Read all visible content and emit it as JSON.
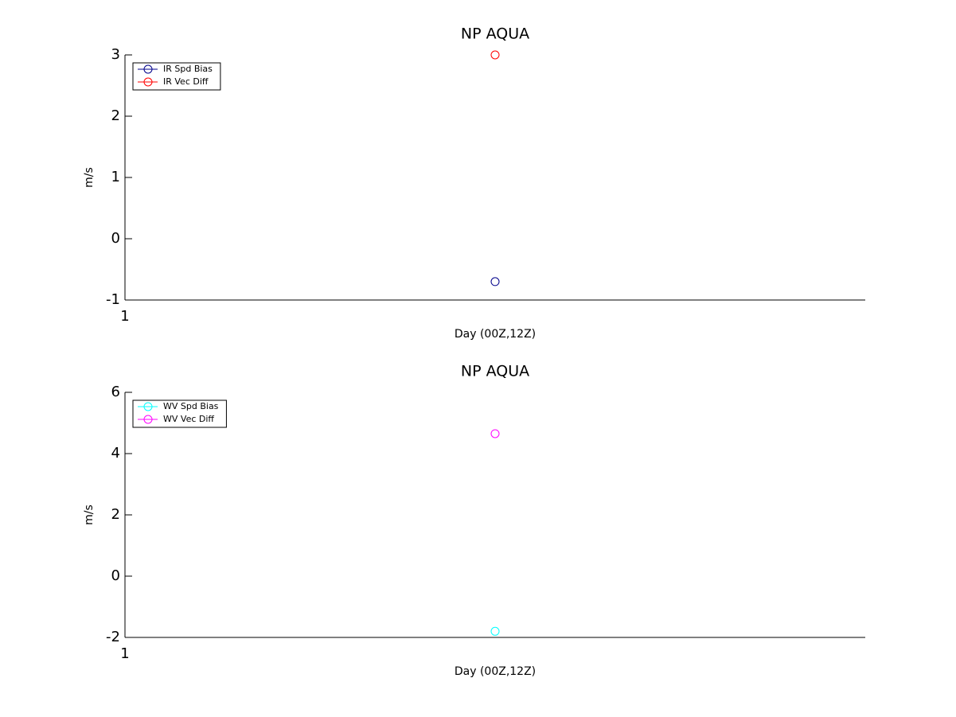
{
  "chart_data": [
    {
      "type": "scatter",
      "title": "NP AQUA",
      "xlabel": "Day (00Z,12Z)",
      "ylabel": "m/s",
      "x": [
        1.5
      ],
      "xlim": [
        1,
        2
      ],
      "xticks": [
        1
      ],
      "ylim": [
        -1,
        3
      ],
      "yticks": [
        -1,
        0,
        1,
        2,
        3
      ],
      "legend": "upper left",
      "series": [
        {
          "name": "IR Spd Bias",
          "color": "#00008b",
          "values": [
            -0.7
          ]
        },
        {
          "name": "IR Vec Diff",
          "color": "#ff0000",
          "values": [
            3
          ]
        }
      ]
    },
    {
      "type": "scatter",
      "title": "NP AQUA",
      "xlabel": "Day (00Z,12Z)",
      "ylabel": "m/s",
      "x": [
        1.5
      ],
      "xlim": [
        1,
        2
      ],
      "xticks": [
        1
      ],
      "ylim": [
        -2,
        6
      ],
      "yticks": [
        -2,
        0,
        2,
        4,
        6
      ],
      "legend": "upper left",
      "series": [
        {
          "name": "WV Spd Bias",
          "color": "#00ffff",
          "values": [
            -1.8
          ]
        },
        {
          "name": "WV Vec Diff",
          "color": "#ff00ff",
          "values": [
            4.65
          ]
        }
      ]
    }
  ]
}
